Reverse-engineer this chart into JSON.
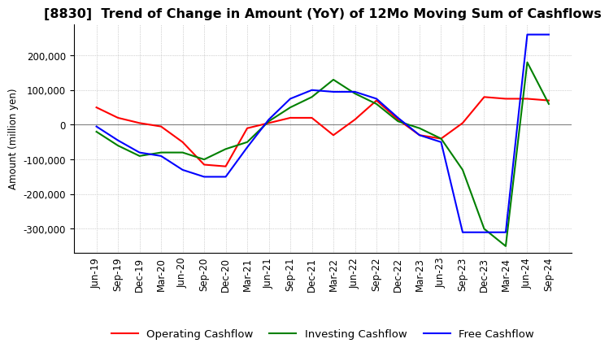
{
  "title": "[8830]  Trend of Change in Amount (YoY) of 12Mo Moving Sum of Cashflows",
  "ylabel": "Amount (million yen)",
  "x_labels": [
    "Jun-19",
    "Sep-19",
    "Dec-19",
    "Mar-20",
    "Jun-20",
    "Sep-20",
    "Dec-20",
    "Mar-21",
    "Jun-21",
    "Sep-21",
    "Dec-21",
    "Mar-22",
    "Jun-22",
    "Sep-22",
    "Dec-22",
    "Mar-23",
    "Jun-23",
    "Sep-23",
    "Dec-23",
    "Mar-24",
    "Jun-24",
    "Sep-24"
  ],
  "operating": [
    50000,
    20000,
    5000,
    -5000,
    -50000,
    -115000,
    -120000,
    -10000,
    5000,
    20000,
    20000,
    -30000,
    15000,
    70000,
    15000,
    -30000,
    -40000,
    5000,
    80000,
    75000,
    75000,
    70000
  ],
  "investing": [
    -20000,
    -60000,
    -90000,
    -80000,
    -80000,
    -100000,
    -70000,
    -50000,
    10000,
    50000,
    80000,
    130000,
    90000,
    60000,
    10000,
    -10000,
    -40000,
    -130000,
    -300000,
    -350000,
    180000,
    60000
  ],
  "free": [
    -5000,
    -45000,
    -80000,
    -90000,
    -130000,
    -150000,
    -150000,
    -65000,
    15000,
    75000,
    100000,
    95000,
    95000,
    75000,
    20000,
    -30000,
    -50000,
    -310000,
    -310000,
    -310000,
    260000,
    260000
  ],
  "ylim": [
    -370000,
    290000
  ],
  "yticks": [
    -300000,
    -200000,
    -100000,
    0,
    100000,
    200000
  ],
  "colors": {
    "operating": "#ff0000",
    "investing": "#008000",
    "free": "#0000ff"
  },
  "grid_color": "#aaaaaa",
  "background_color": "#ffffff",
  "title_fontsize": 11.5,
  "legend_fontsize": 9.5,
  "tick_fontsize": 8.5
}
